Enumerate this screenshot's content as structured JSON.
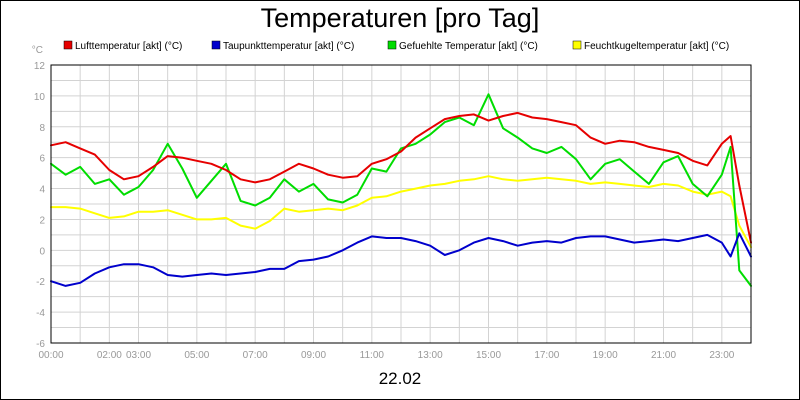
{
  "chart_data": {
    "type": "line",
    "title": "Temperaturen [pro Tag]",
    "xlabel": "22.02",
    "ylabel": "°C",
    "xlim": [
      0,
      24
    ],
    "ylim": [
      -6,
      12
    ],
    "grid": true,
    "legend_position": "top",
    "x_tick_labels": [
      "00:00",
      "02:00",
      "03:00",
      "05:00",
      "07:00",
      "09:00",
      "11:00",
      "13:00",
      "15:00",
      "17:00",
      "19:00",
      "21:00",
      "23:00"
    ],
    "x_tick_values": [
      0,
      2,
      3,
      5,
      7,
      9,
      11,
      13,
      15,
      17,
      19,
      21,
      23
    ],
    "y_tick_labels": [
      "-6",
      "-4",
      "-2",
      "0",
      "2",
      "4",
      "6",
      "8",
      "10",
      "12"
    ],
    "y_tick_values": [
      -6,
      -4,
      -2,
      0,
      2,
      4,
      6,
      8,
      10,
      12
    ],
    "series": [
      {
        "name": "Lufttemperatur [akt] (°C)",
        "color": "#e60000",
        "x": [
          0,
          0.5,
          1,
          1.5,
          2,
          2.5,
          3,
          3.5,
          4,
          4.5,
          5,
          5.5,
          6,
          6.5,
          7,
          7.5,
          8,
          8.5,
          9,
          9.5,
          10,
          10.5,
          11,
          11.5,
          12,
          12.5,
          13,
          13.5,
          14,
          14.5,
          15,
          15.5,
          16,
          16.5,
          17,
          17.5,
          18,
          18.5,
          19,
          19.5,
          20,
          20.5,
          21,
          21.5,
          22,
          22.5,
          23,
          23.3,
          23.6,
          24
        ],
        "values": [
          6.8,
          7.0,
          6.6,
          6.2,
          5.2,
          4.6,
          4.8,
          5.4,
          6.1,
          6.0,
          5.8,
          5.6,
          5.2,
          4.6,
          4.4,
          4.6,
          5.1,
          5.6,
          5.3,
          4.9,
          4.7,
          4.8,
          5.6,
          5.9,
          6.4,
          7.3,
          7.9,
          8.5,
          8.7,
          8.8,
          8.4,
          8.7,
          8.9,
          8.6,
          8.5,
          8.3,
          8.1,
          7.3,
          6.9,
          7.1,
          7.0,
          6.7,
          6.5,
          6.3,
          5.8,
          5.5,
          6.9,
          7.4,
          4.2,
          0.5
        ]
      },
      {
        "name": "Taupunkttemperatur [akt] (°C)",
        "color": "#0000cc",
        "x": [
          0,
          0.5,
          1,
          1.5,
          2,
          2.5,
          3,
          3.5,
          4,
          4.5,
          5,
          5.5,
          6,
          6.5,
          7,
          7.5,
          8,
          8.5,
          9,
          9.5,
          10,
          10.5,
          11,
          11.5,
          12,
          12.5,
          13,
          13.5,
          14,
          14.5,
          15,
          15.5,
          16,
          16.5,
          17,
          17.5,
          18,
          18.5,
          19,
          19.5,
          20,
          20.5,
          21,
          21.5,
          22,
          22.5,
          23,
          23.3,
          23.6,
          24
        ],
        "values": [
          -2.0,
          -2.3,
          -2.1,
          -1.5,
          -1.1,
          -0.9,
          -0.9,
          -1.1,
          -1.6,
          -1.7,
          -1.6,
          -1.5,
          -1.6,
          -1.5,
          -1.4,
          -1.2,
          -1.2,
          -0.7,
          -0.6,
          -0.4,
          0.0,
          0.5,
          0.9,
          0.8,
          0.8,
          0.6,
          0.3,
          -0.3,
          0.0,
          0.5,
          0.8,
          0.6,
          0.3,
          0.5,
          0.6,
          0.5,
          0.8,
          0.9,
          0.9,
          0.7,
          0.5,
          0.6,
          0.7,
          0.6,
          0.8,
          1.0,
          0.5,
          -0.4,
          1.1,
          -0.4
        ]
      },
      {
        "name": "Gefuehlte Temperatur [akt] (°C)",
        "color": "#00dd00",
        "x": [
          0,
          0.5,
          1,
          1.5,
          2,
          2.5,
          3,
          3.5,
          4,
          4.5,
          5,
          5.5,
          6,
          6.5,
          7,
          7.5,
          8,
          8.5,
          9,
          9.5,
          10,
          10.5,
          11,
          11.5,
          12,
          12.5,
          13,
          13.5,
          14,
          14.5,
          15,
          15.5,
          16,
          16.5,
          17,
          17.5,
          18,
          18.5,
          19,
          19.5,
          20,
          20.5,
          21,
          21.5,
          22,
          22.5,
          23,
          23.3,
          23.6,
          24
        ],
        "values": [
          5.6,
          4.9,
          5.4,
          4.3,
          4.6,
          3.6,
          4.1,
          5.2,
          6.9,
          5.3,
          3.4,
          4.5,
          5.6,
          3.2,
          2.9,
          3.4,
          4.6,
          3.8,
          4.3,
          3.3,
          3.1,
          3.6,
          5.3,
          5.1,
          6.6,
          6.9,
          7.5,
          8.3,
          8.6,
          8.1,
          10.1,
          7.9,
          7.3,
          6.6,
          6.3,
          6.7,
          5.9,
          4.6,
          5.6,
          5.9,
          5.1,
          4.3,
          5.7,
          6.1,
          4.3,
          3.5,
          4.9,
          6.7,
          -1.3,
          -2.3
        ]
      },
      {
        "name": "Feuchtkugeltemperatur [akt] (°C)",
        "color": "#ffff00",
        "x": [
          0,
          0.5,
          1,
          1.5,
          2,
          2.5,
          3,
          3.5,
          4,
          4.5,
          5,
          5.5,
          6,
          6.5,
          7,
          7.5,
          8,
          8.5,
          9,
          9.5,
          10,
          10.5,
          11,
          11.5,
          12,
          12.5,
          13,
          13.5,
          14,
          14.5,
          15,
          15.5,
          16,
          16.5,
          17,
          17.5,
          18,
          18.5,
          19,
          19.5,
          20,
          20.5,
          21,
          21.5,
          22,
          22.5,
          23,
          23.3,
          23.6,
          24
        ],
        "values": [
          2.8,
          2.8,
          2.7,
          2.4,
          2.1,
          2.2,
          2.5,
          2.5,
          2.6,
          2.3,
          2.0,
          2.0,
          2.1,
          1.6,
          1.4,
          1.9,
          2.7,
          2.5,
          2.6,
          2.7,
          2.6,
          2.9,
          3.4,
          3.5,
          3.8,
          4.0,
          4.2,
          4.3,
          4.5,
          4.6,
          4.8,
          4.6,
          4.5,
          4.6,
          4.7,
          4.6,
          4.5,
          4.3,
          4.4,
          4.3,
          4.2,
          4.1,
          4.3,
          4.2,
          3.8,
          3.6,
          3.8,
          3.5,
          1.6,
          0.2
        ]
      }
    ]
  }
}
